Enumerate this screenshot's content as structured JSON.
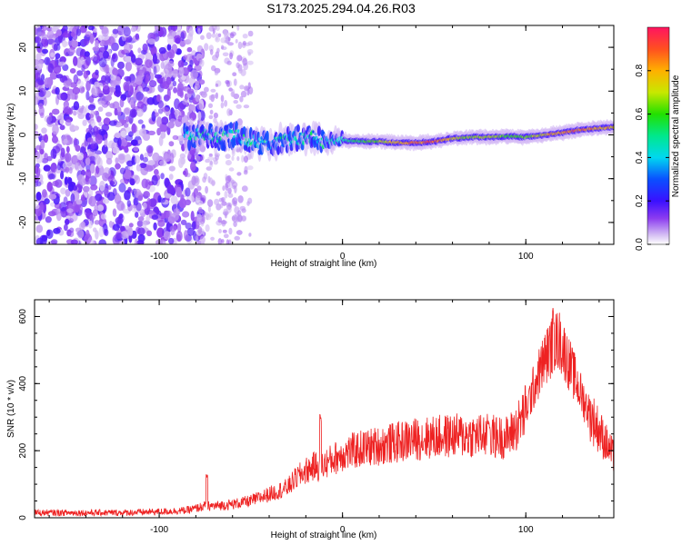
{
  "title": "S173.2025.294.04.26.R03",
  "chart_data": [
    {
      "type": "heatmap",
      "xlabel": "Height of straight line (km)",
      "ylabel": "Frequency (Hz)",
      "xlim": [
        -168,
        148
      ],
      "ylim": [
        -25,
        25
      ],
      "x_ticks": [
        -100,
        0,
        100
      ],
      "y_ticks": [
        -20,
        -10,
        0,
        10,
        20
      ],
      "colorbar": {
        "label": "Normalized spectral amplitude",
        "range": [
          0,
          1
        ],
        "ticks": [
          0.0,
          0.2,
          0.4,
          0.6,
          0.8
        ],
        "tick_labels": [
          "0.0",
          "0.2",
          "0.4",
          "0.6",
          "0.8"
        ]
      },
      "ridge": {
        "x": [
          -85,
          -70,
          -60,
          -50,
          -40,
          -30,
          -20,
          -15,
          -10,
          -5,
          0,
          10,
          20,
          30,
          40,
          50,
          60,
          70,
          80,
          90,
          100,
          110,
          120,
          130,
          140,
          148
        ],
        "freq": [
          0,
          -0.5,
          0,
          -1.5,
          -2,
          -1,
          -0.5,
          -0.5,
          -1.5,
          -1.2,
          -1.2,
          -1.5,
          -1.5,
          -1.8,
          -1.8,
          -1.5,
          -0.8,
          -0.5,
          -0.5,
          -0.3,
          -0.5,
          0,
          0.5,
          1.2,
          1.5,
          1.8
        ],
        "amplitude": [
          0.2,
          0.2,
          0.25,
          0.25,
          0.25,
          0.2,
          0.25,
          0.3,
          0.4,
          0.45,
          0.5,
          0.6,
          0.7,
          0.85,
          0.95,
          0.95,
          0.8,
          0.7,
          0.75,
          0.65,
          0.7,
          0.8,
          0.9,
          0.95,
          0.85,
          0.85
        ]
      },
      "noise_region_x": [
        -168,
        -80
      ],
      "colors": {
        "low": "#dcc8f5",
        "mid": "#6a11e6",
        "high": "#ff1460"
      }
    },
    {
      "type": "line",
      "xlabel": "Height of straight line (km)",
      "ylabel": "SNR (10 * v/v)",
      "xlim": [
        -168,
        148
      ],
      "ylim": [
        0,
        650
      ],
      "x_ticks": [
        -100,
        0,
        100
      ],
      "y_ticks": [
        0,
        200,
        400,
        600
      ],
      "color": "#ee2222",
      "series": [
        {
          "x": [
            -168,
            -140,
            -120,
            -100,
            -85,
            -80,
            -75,
            -70,
            -60,
            -50,
            -40,
            -30,
            -25,
            -20,
            -15,
            -12,
            -10,
            -5,
            0,
            10,
            20,
            30,
            40,
            50,
            60,
            70,
            80,
            85,
            90,
            95,
            100,
            105,
            110,
            115,
            118,
            120,
            125,
            130,
            135,
            140,
            145,
            148
          ],
          "values": [
            15,
            15,
            15,
            18,
            22,
            28,
            35,
            35,
            40,
            50,
            70,
            90,
            120,
            140,
            155,
            150,
            160,
            175,
            190,
            205,
            215,
            225,
            235,
            240,
            245,
            245,
            245,
            240,
            240,
            270,
            320,
            400,
            470,
            520,
            530,
            510,
            440,
            370,
            310,
            260,
            210,
            180
          ]
        }
      ],
      "spikes": [
        {
          "x": -74,
          "value": 130
        },
        {
          "x": -12,
          "value": 310
        },
        {
          "x": 80,
          "value": 290
        },
        {
          "x": 115,
          "value": 640
        }
      ]
    }
  ]
}
